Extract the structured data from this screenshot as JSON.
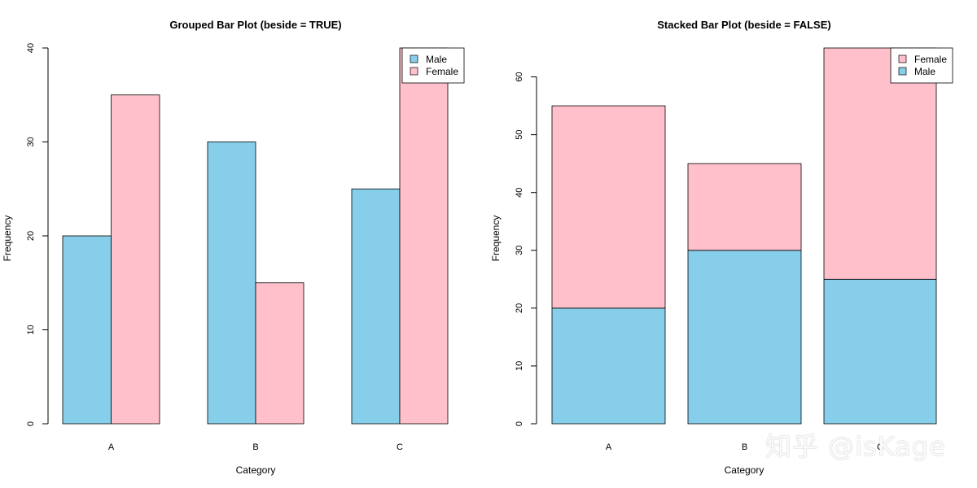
{
  "colors": {
    "male": "#87CEEB",
    "female": "#FFC0CB",
    "axis": "#000000"
  },
  "chart_data": [
    {
      "type": "bar",
      "mode": "grouped",
      "title": "Grouped Bar Plot (beside = TRUE)",
      "xlabel": "Category",
      "ylabel": "Frequency",
      "categories": [
        "A",
        "B",
        "C"
      ],
      "series": [
        {
          "name": "Male",
          "values": [
            20,
            30,
            25
          ],
          "color": "#87CEEB"
        },
        {
          "name": "Female",
          "values": [
            35,
            15,
            40
          ],
          "color": "#FFC0CB"
        }
      ],
      "ylim": [
        0,
        40
      ],
      "yticks": [
        0,
        10,
        20,
        30,
        40
      ],
      "legend": {
        "position": "top-right",
        "entries": [
          "Male",
          "Female"
        ]
      },
      "grid": false
    },
    {
      "type": "bar",
      "mode": "stacked",
      "title": "Stacked Bar Plot (beside = FALSE)",
      "xlabel": "Category",
      "ylabel": "Frequency",
      "categories": [
        "A",
        "B",
        "C"
      ],
      "series": [
        {
          "name": "Male",
          "values": [
            20,
            30,
            25
          ],
          "color": "#87CEEB"
        },
        {
          "name": "Female",
          "values": [
            35,
            15,
            40
          ],
          "color": "#FFC0CB"
        }
      ],
      "ylim": [
        0,
        65
      ],
      "yticks": [
        0,
        10,
        20,
        30,
        40,
        50,
        60
      ],
      "legend": {
        "position": "top-right",
        "entries": [
          "Female",
          "Male"
        ]
      },
      "grid": false
    }
  ],
  "watermark": "知乎 @isKage"
}
